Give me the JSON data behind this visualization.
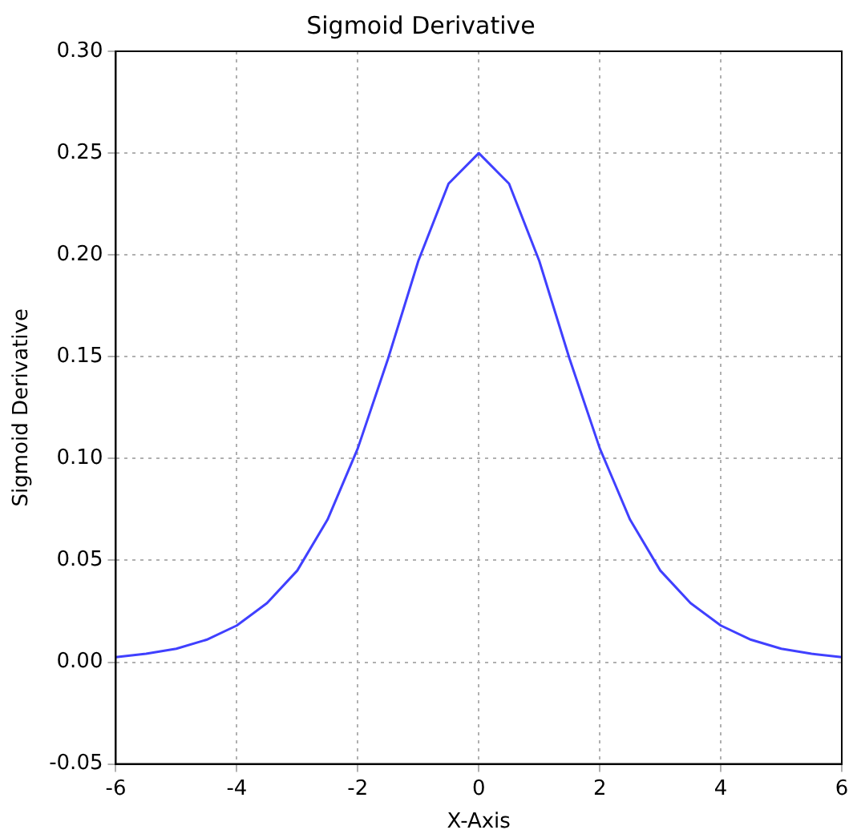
{
  "chart_data": {
    "type": "line",
    "title": "Sigmoid Derivative",
    "xlabel": "X-Axis",
    "ylabel": "Sigmoid Derivative",
    "x": [
      -6,
      -5.5,
      -5,
      -4.5,
      -4,
      -3.5,
      -3,
      -2.5,
      -2,
      -1.5,
      -1,
      -0.5,
      0,
      0.5,
      1,
      1.5,
      2,
      2.5,
      3,
      3.5,
      4,
      4.5,
      5,
      5.5,
      6
    ],
    "series": [
      {
        "color": "#4040ff",
        "values": [
          0.0025,
          0.0041,
          0.0066,
          0.011,
          0.018,
          0.029,
          0.045,
          0.07,
          0.105,
          0.149,
          0.197,
          0.235,
          0.25,
          0.235,
          0.197,
          0.149,
          0.105,
          0.07,
          0.045,
          0.029,
          0.018,
          0.011,
          0.0066,
          0.0041,
          0.0025
        ]
      }
    ],
    "xlim": [
      -6,
      6
    ],
    "xticks": [
      -6,
      -4,
      -2,
      0,
      2,
      4,
      6
    ],
    "ylim": [
      -0.05,
      0.3
    ],
    "yticks": [
      -0.05,
      {
        "value": 0,
        "label": "0.00"
      },
      0.05,
      {
        "value": 0.1,
        "label": "0.10"
      },
      0.15,
      {
        "value": 0.2,
        "label": "0.20"
      },
      0.25,
      {
        "value": 0.3,
        "label": "0.30"
      }
    ],
    "grid": true,
    "legend": false,
    "marker": "none",
    "line_style": "solid"
  }
}
